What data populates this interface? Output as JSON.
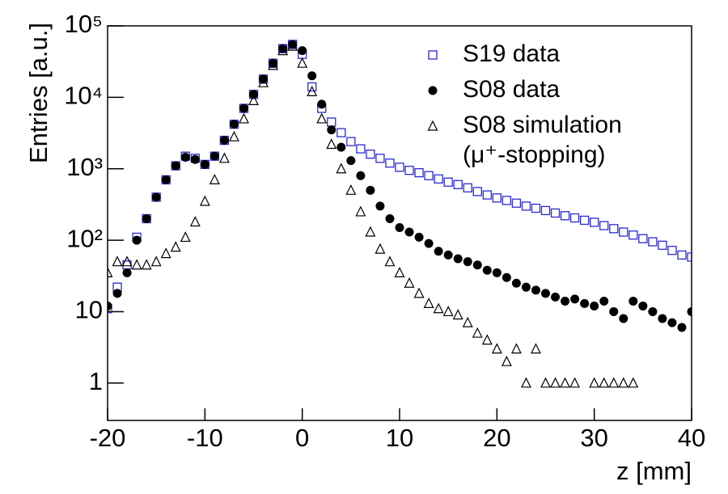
{
  "chart_data": {
    "type": "scatter",
    "x_label": "z [mm]",
    "y_label": "Entries [a.u.]",
    "yscale": "log",
    "xlim": [
      -20,
      40
    ],
    "ylim": [
      0.3,
      100000
    ],
    "xticks": [
      -20,
      -10,
      0,
      10,
      20,
      30,
      40
    ],
    "yticks": [
      1,
      10,
      {
        "value": 100,
        "label": "10²"
      },
      {
        "value": 1000,
        "label": "10³"
      },
      {
        "value": 10000,
        "label": "10⁴"
      },
      {
        "value": 100000,
        "label": "10⁵"
      }
    ],
    "legend": "upper right",
    "x": [
      -20,
      -19,
      -18,
      -17,
      -16,
      -15,
      -14,
      -13,
      -12,
      -11,
      -10,
      -9,
      -8,
      -7,
      -6,
      -5,
      -4,
      -3,
      -2,
      -1,
      0,
      1,
      2,
      3,
      4,
      5,
      6,
      7,
      8,
      9,
      10,
      11,
      12,
      13,
      14,
      15,
      16,
      17,
      18,
      19,
      20,
      21,
      22,
      23,
      24,
      25,
      26,
      27,
      28,
      29,
      30,
      31,
      32,
      33,
      34,
      35,
      36,
      37,
      38,
      39,
      40
    ],
    "series": [
      {
        "name": "S19 data",
        "color": "#2a2ad4",
        "marker": "square",
        "values": [
          11,
          22,
          45,
          110,
          200,
          400,
          700,
          1100,
          1500,
          1400,
          1150,
          1500,
          2500,
          4200,
          7000,
          11000,
          18000,
          30000,
          48000,
          55000,
          40000,
          14000,
          7000,
          4500,
          3200,
          2400,
          1900,
          1600,
          1400,
          1200,
          1050,
          950,
          880,
          800,
          720,
          650,
          600,
          540,
          480,
          430,
          390,
          360,
          330,
          300,
          280,
          260,
          240,
          220,
          205,
          190,
          178,
          160,
          145,
          130,
          118,
          105,
          95,
          85,
          72,
          62,
          58
        ]
      },
      {
        "name": "S08 data",
        "color": "#000000",
        "marker": "circle",
        "values": [
          12,
          18,
          35,
          100,
          200,
          400,
          700,
          1100,
          1450,
          1350,
          1150,
          1500,
          2500,
          4200,
          7000,
          11000,
          18000,
          30000,
          48000,
          55000,
          45000,
          20000,
          8000,
          3500,
          2000,
          1300,
          800,
          500,
          300,
          200,
          150,
          130,
          110,
          90,
          70,
          62,
          55,
          50,
          45,
          38,
          35,
          30,
          25,
          22,
          20,
          18,
          16,
          14,
          15,
          13,
          12,
          14,
          10,
          8,
          14,
          12,
          10,
          8,
          7,
          6,
          10
        ]
      },
      {
        "name": "S08 simulation (μ⁺-stopping)",
        "color": "#000000",
        "marker": "triangle",
        "values": [
          35,
          50,
          50,
          45,
          45,
          50,
          65,
          80,
          110,
          180,
          350,
          700,
          1400,
          2800,
          5000,
          9000,
          16000,
          28000,
          45000,
          52000,
          30000,
          12000,
          5000,
          2200,
          1000,
          500,
          250,
          130,
          75,
          50,
          35,
          25,
          18,
          13,
          11,
          10,
          9,
          7,
          5,
          4,
          3,
          2,
          3,
          1,
          3,
          1,
          1,
          1,
          1,
          null,
          1,
          1,
          1,
          1,
          1,
          null,
          null,
          null,
          null,
          null,
          null
        ]
      }
    ]
  }
}
